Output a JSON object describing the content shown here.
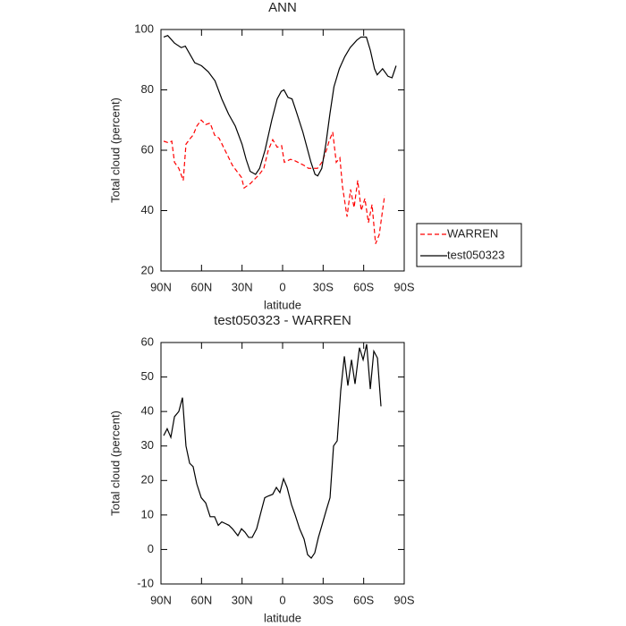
{
  "chart_data": [
    {
      "type": "line",
      "title": "ANN",
      "xlabel": "latitude",
      "ylabel": "Total cloud (percent)",
      "xlim": [
        90,
        -90
      ],
      "xticks": [
        {
          "value": 90,
          "label": "90N"
        },
        {
          "value": 60,
          "label": "60N"
        },
        {
          "value": 30,
          "label": "30N"
        },
        0,
        {
          "value": -30,
          "label": "30S"
        },
        {
          "value": -60,
          "label": "60S"
        },
        {
          "value": -90,
          "label": "90S"
        }
      ],
      "ylim": [
        20,
        100
      ],
      "yticks": [
        20,
        40,
        60,
        80,
        100
      ],
      "legend": "right",
      "series": [
        {
          "name": "WARREN",
          "color": "#ff0000",
          "dashed": true,
          "x": [
            88,
            84.7,
            82,
            80,
            76.8,
            73.5,
            71.5,
            68.2,
            66.2,
            63.5,
            60.2,
            56.9,
            53.6,
            50.3,
            47,
            43.7,
            40.4,
            37.1,
            33.8,
            30.4,
            28.5,
            23.8,
            17.2,
            13.9,
            10.6,
            7.3,
            4,
            0.7,
            -1.3,
            -5.9,
            -9.2,
            -15.8,
            -19.2,
            -25.8,
            -29.1,
            -32.4,
            -34.4,
            -37.1,
            -39.7,
            -42.4,
            -44.3,
            -47.7,
            -50.3,
            -52.9,
            -55.6,
            -58.2,
            -60.9,
            -63.5,
            -66.2,
            -68.8,
            -71.5,
            -75.5
          ],
          "values": [
            63,
            62.5,
            63,
            56,
            54,
            50,
            62,
            64,
            65,
            68,
            70,
            68.5,
            69,
            65,
            64,
            61,
            58,
            55,
            53,
            51,
            47.5,
            49,
            52,
            54,
            60,
            63.5,
            61,
            61.5,
            56,
            57,
            56.5,
            55,
            54,
            54,
            56,
            60,
            63,
            66,
            56,
            57.5,
            48,
            38,
            47,
            41,
            50,
            40,
            44,
            36,
            42,
            29,
            32,
            45
          ]
        },
        {
          "name": "test050323",
          "color": "#000000",
          "dashed": false,
          "x": [
            88,
            85,
            80,
            75,
            72,
            65,
            60,
            55,
            50,
            45,
            40,
            35,
            30,
            27,
            24,
            20,
            17,
            13,
            8,
            4,
            1,
            -1,
            -4,
            -7,
            -10,
            -15,
            -18,
            -21,
            -24,
            -26,
            -29,
            -32,
            -35,
            -38,
            -42,
            -46,
            -50,
            -55,
            -58,
            -62,
            -65,
            -68,
            -70,
            -74,
            -78,
            -81,
            -84
          ],
          "values": [
            97.5,
            98,
            95.5,
            94,
            94.5,
            89,
            88,
            86,
            83,
            77,
            72,
            68,
            62,
            57,
            53,
            52,
            54,
            60,
            70,
            77,
            79.5,
            80,
            77.5,
            77,
            73,
            66,
            61,
            56,
            52,
            51.5,
            54,
            62,
            72,
            81,
            87,
            91,
            94,
            96.5,
            97.5,
            97.5,
            93,
            87,
            85,
            87,
            84.5,
            84,
            88
          ]
        }
      ]
    },
    {
      "type": "line",
      "title": "test050323 - WARREN",
      "xlabel": "latitude",
      "ylabel": "Total cloud (percent)",
      "xlim": [
        90,
        -90
      ],
      "xticks": [
        {
          "value": 90,
          "label": "90N"
        },
        {
          "value": 60,
          "label": "60N"
        },
        {
          "value": 30,
          "label": "30N"
        },
        0,
        {
          "value": -30,
          "label": "30S"
        },
        {
          "value": -60,
          "label": "60S"
        },
        {
          "value": -90,
          "label": "90S"
        }
      ],
      "ylim": [
        -10,
        60
      ],
      "yticks": [
        -10,
        0,
        10,
        20,
        30,
        40,
        50,
        60
      ],
      "color": "#000000",
      "x": [
        88,
        85.4,
        82.7,
        80,
        76.8,
        74.1,
        71.5,
        68.8,
        66.2,
        63.5,
        60.2,
        56.9,
        53.6,
        50.3,
        47.6,
        45,
        42.3,
        39.7,
        37.1,
        33.1,
        30.4,
        27.8,
        25.1,
        22.5,
        19.2,
        15.9,
        13.2,
        10.6,
        7.3,
        4.6,
        2,
        -0.7,
        -3.3,
        -6.6,
        -9.3,
        -12.6,
        -15.9,
        -18.5,
        -21.2,
        -23.8,
        -26.5,
        -29.1,
        -32.4,
        -35.1,
        -37.7,
        -40.4,
        -43,
        -45.7,
        -48.3,
        -51,
        -53.6,
        -56.9,
        -59.6,
        -62.2,
        -64.9,
        -67.5,
        -70.2,
        -72.8
      ],
      "values": [
        33,
        35,
        32.5,
        38.5,
        40,
        44,
        30,
        25,
        24,
        19,
        15,
        13.5,
        9.5,
        9.5,
        7,
        8,
        7.5,
        7,
        6,
        4,
        6,
        5,
        3.5,
        3.5,
        6,
        11,
        15,
        15.5,
        16,
        18,
        16.5,
        20.5,
        18,
        13,
        10,
        6,
        3,
        -1.5,
        -2.5,
        -1,
        3.5,
        7,
        11.5,
        15,
        30,
        31.5,
        46,
        56,
        47.5,
        55,
        48,
        58.5,
        55,
        59.5,
        46.5,
        57.5,
        55.5,
        41.5
      ]
    }
  ]
}
